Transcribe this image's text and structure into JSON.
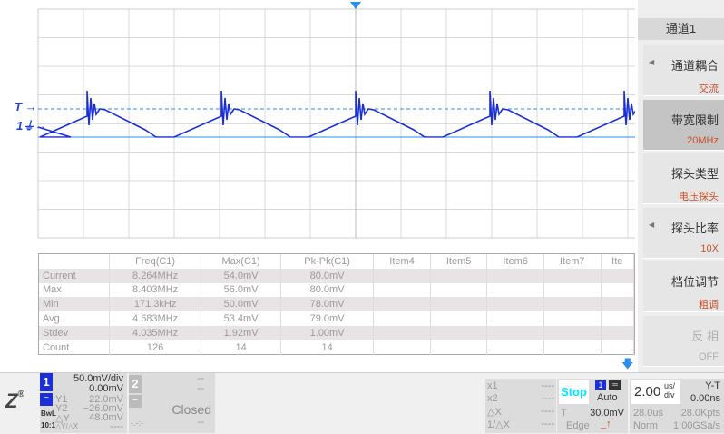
{
  "waveform": {
    "trigger_marker": "T",
    "channel_marker": "1",
    "colors": {
      "trace": "#1a2fd8",
      "trigger_line": "#2a8ef0",
      "grid": "#d8d8d8"
    },
    "period_us": 4.0,
    "peak_to_peak_mv": 80.0
  },
  "measurements": {
    "headers": [
      "",
      "Freq(C1)",
      "Max(C1)",
      "Pk-Pk(C1)",
      "Item4",
      "Item5",
      "Item6",
      "Item7",
      "Ite"
    ],
    "rows": [
      {
        "label": "Current",
        "values": [
          "8.264MHz",
          "54.0mV",
          "80.0mV"
        ]
      },
      {
        "label": "Max",
        "values": [
          "8.403MHz",
          "56.0mV",
          "80.0mV"
        ]
      },
      {
        "label": "Min",
        "values": [
          "171.3kHz",
          "50.0mV",
          "78.0mV"
        ]
      },
      {
        "label": "Avg",
        "values": [
          "4.683MHz",
          "53.4mV",
          "79.0mV"
        ]
      },
      {
        "label": "Stdev",
        "values": [
          "4.035MHz",
          "1.92mV",
          "1.00mV"
        ]
      },
      {
        "label": "Count",
        "values": [
          "126",
          "14",
          "14"
        ]
      }
    ]
  },
  "side_menu": {
    "title": "通道1",
    "items": [
      {
        "label": "通道耦合",
        "value": "交流"
      },
      {
        "label": "带宽限制",
        "value": "20MHz"
      },
      {
        "label": "探头类型",
        "value": "电压探头"
      },
      {
        "label": "探头比率",
        "value": "10X"
      },
      {
        "label": "档位调节",
        "value": "粗调"
      },
      {
        "label": "反 相",
        "value": "OFF"
      }
    ]
  },
  "bottom": {
    "logo": "ZLG",
    "ch1": {
      "num": "1",
      "scale": "50.0mV/div",
      "offset": "0.00mV",
      "y1_label": "Y1",
      "y1": "22.0mV",
      "y2_label": "Y2",
      "y2": "−26.0mV",
      "dy_label": "△Y",
      "dy": "48.0mV",
      "dydx_label": "△Y/△X",
      "dydx": "----",
      "bw": "BwL",
      "ratio": "10:1"
    },
    "ch2": {
      "num": "2",
      "l1": "--",
      "l2": "--",
      "minus": "−",
      "status": "Closed",
      "l3": "--",
      "l4": "-.-:-"
    },
    "cursor": {
      "x1_label": "x1",
      "x1": "----",
      "x2_label": "x2",
      "x2": "----",
      "dx_label": "△X",
      "dx": "----",
      "inv_label": "1/△X",
      "inv": "----"
    },
    "run": {
      "state": "Stop",
      "trig_src": "1",
      "mode": "Auto",
      "t_label": "T",
      "t_level": "30.0mV",
      "type": "Edge"
    },
    "timebase": {
      "value": "2.00",
      "unit_top": "us/",
      "unit_bot": "div",
      "mode": "Y-T",
      "delay": "0.00ns",
      "span": "28.0us",
      "pts": "28.0Kpts",
      "acq": "Norm",
      "rate": "1.00GSa/s"
    }
  }
}
